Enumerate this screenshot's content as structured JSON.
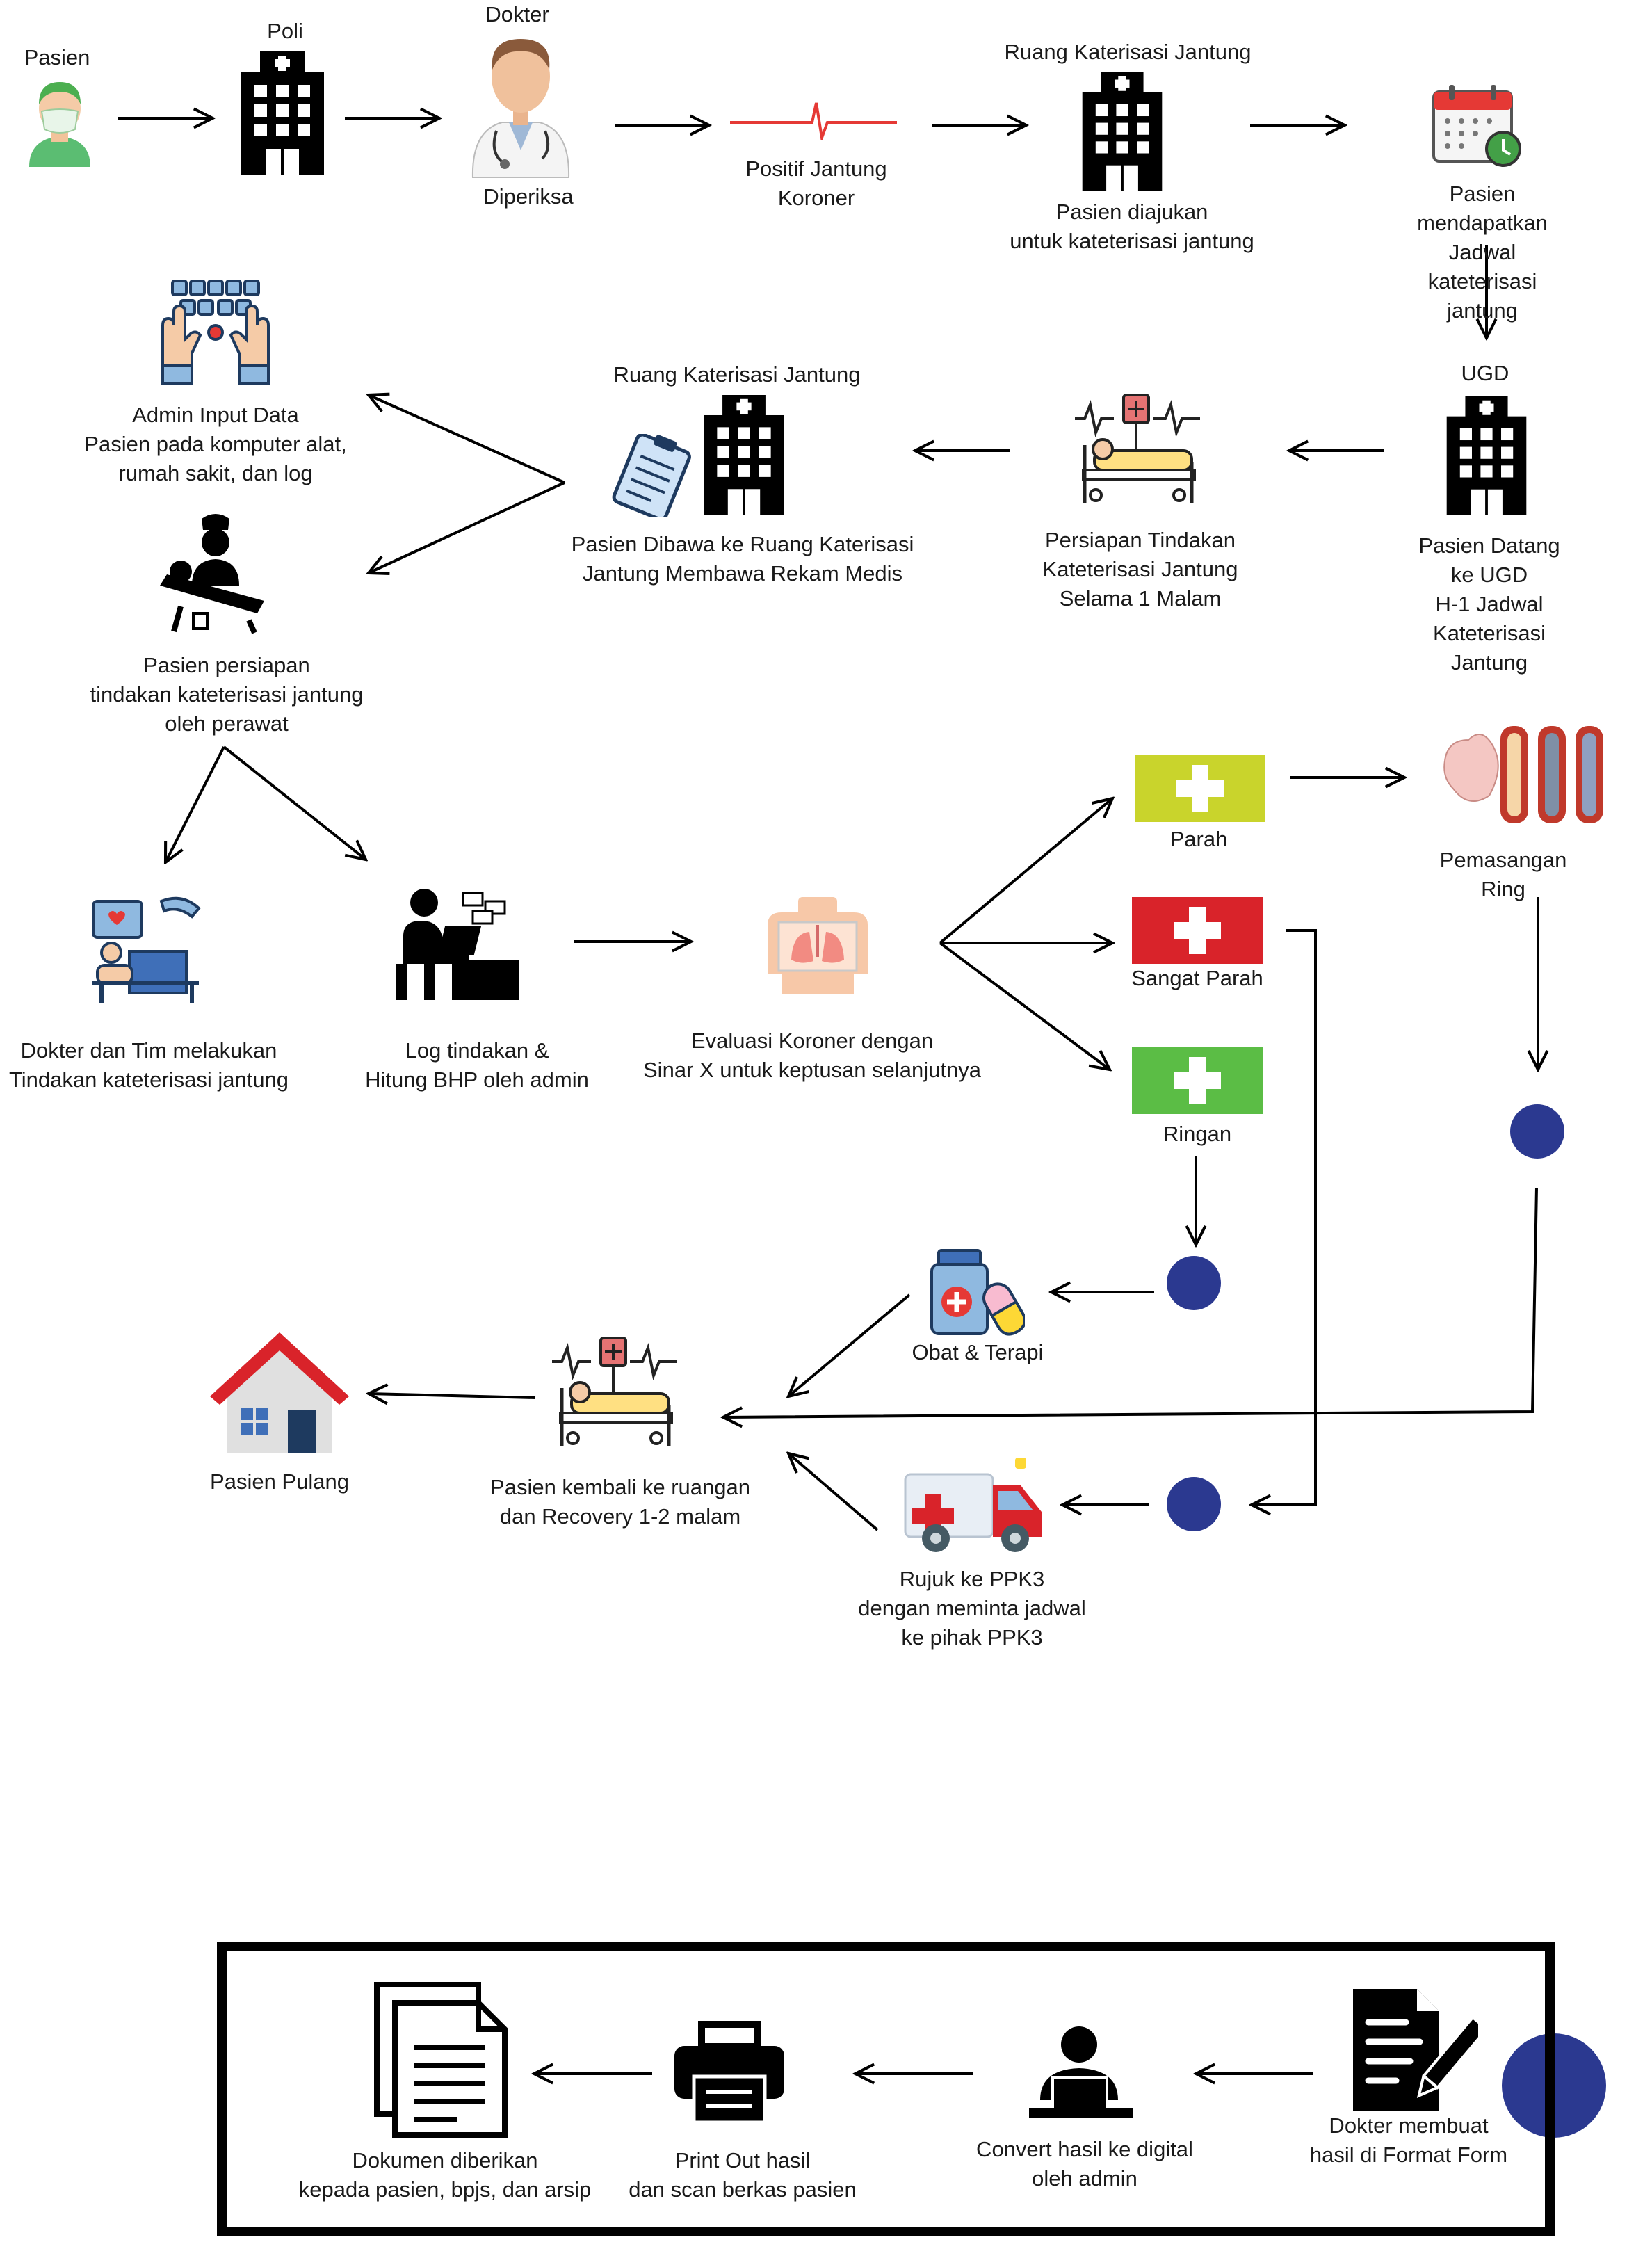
{
  "row1": {
    "pasien": "Pasien",
    "poli": "Poli",
    "dokter": "Dokter",
    "diperiksa": "Diperiksa",
    "positif": "Positif Jantung\nKoroner",
    "ruang_title": "Ruang Katerisasi Jantung",
    "diajukan": "Pasien diajukan\nuntuk kateterisasi jantung",
    "jadwal": "Pasien mendapatkan\nJadwal kateterisasi jantung"
  },
  "row2": {
    "ugd_title": "UGD",
    "ugd_caption": "Pasien Datang ke UGD\nH-1 Jadwal Kateterisasi Jantung",
    "persiapan": "Persiapan Tindakan\nKateterisasi Jantung\nSelama 1 Malam",
    "ruang_title": "Ruang Katerisasi Jantung",
    "dibawa": "Pasien Dibawa ke Ruang Katerisasi\nJantung Membawa Rekam Medis",
    "admin_input": "Admin Input Data\nPasien pada komputer alat,\nrumah sakit, dan log",
    "perawat": "Pasien persiapan\ntindakan kateterisasi jantung\noleh perawat"
  },
  "row3": {
    "dokter_tim": "Dokter dan Tim melakukan\nTindakan kateterisasi jantung",
    "log": "Log tindakan &\nHitung BHP oleh admin",
    "evaluasi": "Evaluasi Koroner dengan\nSinar X untuk keptusan selanjutnya",
    "parah": "Parah",
    "sangat_parah": "Sangat Parah",
    "ringan": "Ringan",
    "pemasangan": "Pemasangan Ring"
  },
  "row4": {
    "obat": "Obat & Terapi",
    "recovery": "Pasien kembali ke ruangan\ndan Recovery 1-2 malam",
    "pulang": "Pasien Pulang",
    "rujuk": "Rujuk ke PPK3\ndengan meminta jadwal\nke pihak PPK3"
  },
  "bottom": {
    "dokter_form": "Dokter membuat\nhasil di Format Form",
    "convert": "Convert hasil ke digital\noleh admin",
    "print": "Print Out hasil\ndan scan berkas pasien",
    "dokumen": "Dokumen diberikan\nkepada pasien, bpjs, dan arsip"
  },
  "colors": {
    "parah": "#c9d42c",
    "sangat_parah": "#d9232a",
    "ringan": "#5bbd45",
    "connector_dot": "#2b3990",
    "ecg": "#e53935"
  }
}
